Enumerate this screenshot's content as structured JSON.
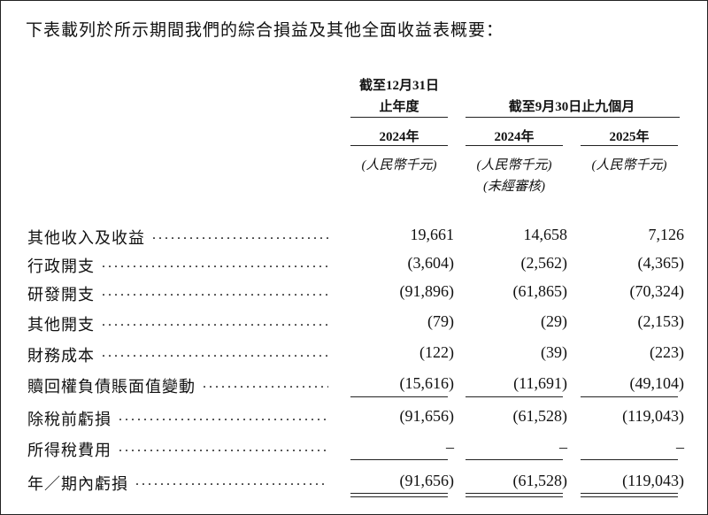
{
  "intro": "下表載列於所示期間我們的綜合損益及其他全面收益表概要：",
  "header": {
    "group1_line1": "截至12月31日",
    "group1_line2": "止年度",
    "group2": "截至9月30日止九個月",
    "years": [
      "2024年",
      "2024年",
      "2025年"
    ],
    "units": [
      "(人民幣千元)",
      "(人民幣千元)",
      "(人民幣千元)"
    ],
    "audit_note": "(未經審核)"
  },
  "table": {
    "rows": [
      [
        "其他收入及收益",
        "19,661",
        "14,658",
        "7,126"
      ],
      [
        "行政開支",
        "(3,604)",
        "(2,562)",
        "(4,365)"
      ],
      [
        "研發開支",
        "(91,896)",
        "(61,865)",
        "(70,324)"
      ],
      [
        "其他開支",
        "(79)",
        "(29)",
        "(2,153)"
      ],
      [
        "財務成本",
        "(122)",
        "(39)",
        "(223)"
      ],
      [
        "贖回權負債賬面值變動",
        "(15,616)",
        "(11,691)",
        "(49,104)"
      ],
      [
        "除稅前虧損",
        "(91,656)",
        "(61,528)",
        "(119,043)"
      ],
      [
        "所得稅費用",
        "–",
        "–",
        "–"
      ],
      [
        "年／期內虧損",
        "(91,656)",
        "(61,528)",
        "(119,043)"
      ]
    ]
  }
}
